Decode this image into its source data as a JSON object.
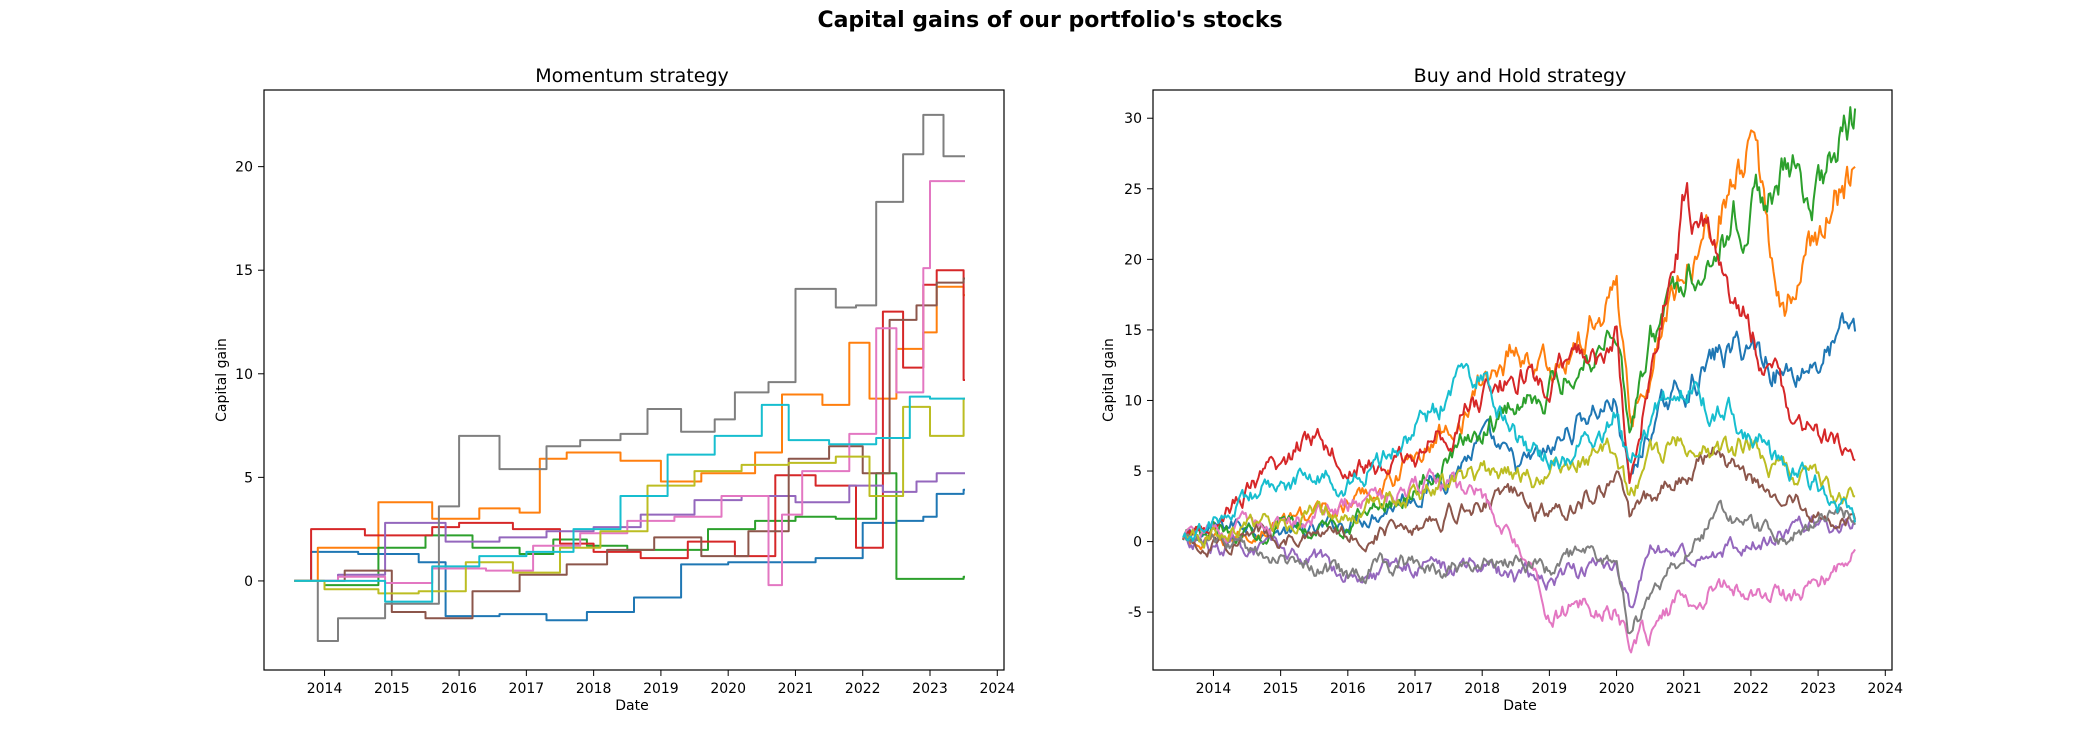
{
  "figure": {
    "suptitle": "Capital gains of our portfolio's stocks"
  },
  "colors": [
    "#1f77b4",
    "#ff7f0e",
    "#2ca02c",
    "#d62728",
    "#9467bd",
    "#8c564b",
    "#e377c2",
    "#7f7f7f",
    "#bcbd22",
    "#17becf"
  ],
  "chart_data": [
    {
      "type": "line",
      "title": "Momentum strategy",
      "xlabel": "Date",
      "ylabel": "Capital gain",
      "xlim": [
        2013.1,
        2024.1
      ],
      "ylim": [
        -4.3,
        23.7
      ],
      "xticks": [
        2014,
        2015,
        2016,
        2017,
        2018,
        2019,
        2020,
        2021,
        2022,
        2023,
        2024
      ],
      "yticks": [
        0,
        5,
        10,
        15,
        20
      ],
      "grid": false,
      "style": "step",
      "series": [
        {
          "x": [
            2013.55,
            2013.8,
            2014.5,
            2015.4,
            2015.8,
            2016.6,
            2017.3,
            2017.9,
            2018.6,
            2019.3,
            2020.0,
            2020.6,
            2021.3,
            2022.0,
            2022.5,
            2022.9,
            2023.1,
            2023.5
          ],
          "y": [
            0.0,
            1.4,
            1.3,
            0.9,
            -1.7,
            -1.6,
            -1.9,
            -1.5,
            -0.8,
            0.8,
            0.9,
            0.9,
            1.1,
            2.8,
            2.9,
            3.1,
            4.2,
            4.4
          ]
        },
        {
          "x": [
            2013.55,
            2013.9,
            2014.8,
            2015.6,
            2016.3,
            2016.9,
            2017.2,
            2017.6,
            2018.4,
            2019.0,
            2019.6,
            2020.4,
            2020.8,
            2021.4,
            2021.8,
            2022.1,
            2022.5,
            2022.9,
            2023.1,
            2023.5
          ],
          "y": [
            0.0,
            1.6,
            3.8,
            3.0,
            3.5,
            3.3,
            5.9,
            6.2,
            5.8,
            4.8,
            5.2,
            6.2,
            9.0,
            8.5,
            11.5,
            8.8,
            11.2,
            12.0,
            14.2,
            13.8
          ]
        },
        {
          "x": [
            2013.55,
            2014.0,
            2014.8,
            2015.5,
            2016.2,
            2016.9,
            2017.4,
            2017.9,
            2018.5,
            2019.1,
            2019.7,
            2020.4,
            2021.0,
            2021.6,
            2022.2,
            2022.5,
            2022.9,
            2023.2,
            2023.5
          ],
          "y": [
            0.0,
            -0.2,
            1.6,
            2.2,
            1.6,
            1.3,
            2.0,
            1.7,
            1.5,
            1.5,
            2.5,
            2.9,
            3.1,
            3.0,
            5.2,
            0.1,
            0.1,
            0.1,
            0.2
          ]
        },
        {
          "x": [
            2013.55,
            2013.8,
            2014.6,
            2015.6,
            2016.0,
            2016.8,
            2017.5,
            2018.0,
            2018.7,
            2019.4,
            2020.1,
            2020.7,
            2021.3,
            2021.9,
            2022.3,
            2022.6,
            2022.9,
            2023.1,
            2023.5
          ],
          "y": [
            0.0,
            2.5,
            2.2,
            2.6,
            2.8,
            2.5,
            1.8,
            1.4,
            1.1,
            1.9,
            1.2,
            5.1,
            4.6,
            1.6,
            13.0,
            10.3,
            14.3,
            15.0,
            9.7
          ]
        },
        {
          "x": [
            2013.55,
            2014.2,
            2014.9,
            2015.8,
            2016.6,
            2017.3,
            2018.0,
            2018.7,
            2019.5,
            2020.2,
            2021.0,
            2021.8,
            2022.3,
            2022.8,
            2023.1,
            2023.5
          ],
          "y": [
            0.0,
            0.3,
            2.8,
            1.9,
            2.1,
            2.4,
            2.6,
            3.2,
            3.9,
            4.1,
            3.8,
            4.6,
            4.3,
            4.8,
            5.2,
            5.2
          ]
        },
        {
          "x": [
            2013.55,
            2014.3,
            2015.0,
            2015.5,
            2016.2,
            2016.9,
            2017.6,
            2018.2,
            2018.9,
            2019.6,
            2020.3,
            2020.9,
            2021.5,
            2022.0,
            2022.4,
            2022.8,
            2023.1,
            2023.5
          ],
          "y": [
            0.0,
            0.5,
            -1.5,
            -1.8,
            -0.5,
            0.3,
            0.8,
            1.5,
            2.1,
            1.2,
            2.4,
            5.9,
            6.5,
            5.2,
            12.6,
            13.3,
            14.4,
            14.6
          ]
        },
        {
          "x": [
            2013.55,
            2014.2,
            2014.9,
            2015.6,
            2016.4,
            2017.1,
            2017.8,
            2018.5,
            2019.2,
            2019.9,
            2020.6,
            2020.8,
            2021.1,
            2021.8,
            2022.2,
            2022.5,
            2022.9,
            2023.0,
            2023.5
          ],
          "y": [
            0.0,
            0.2,
            -0.1,
            0.6,
            0.5,
            1.7,
            2.3,
            2.9,
            3.1,
            4.1,
            -0.2,
            3.2,
            5.3,
            7.1,
            12.2,
            9.1,
            15.1,
            19.3,
            19.3
          ]
        },
        {
          "x": [
            2013.55,
            2013.9,
            2014.2,
            2014.9,
            2015.7,
            2016.0,
            2016.6,
            2017.3,
            2017.8,
            2018.4,
            2018.8,
            2019.3,
            2019.8,
            2020.1,
            2020.6,
            2021.0,
            2021.6,
            2021.9,
            2022.2,
            2022.6,
            2022.9,
            2023.2,
            2023.5
          ],
          "y": [
            0.0,
            -2.9,
            -1.8,
            -1.1,
            3.6,
            7.0,
            5.4,
            6.5,
            6.8,
            7.1,
            8.3,
            7.2,
            7.8,
            9.1,
            9.6,
            14.1,
            13.2,
            13.3,
            18.3,
            20.6,
            22.5,
            20.5,
            20.5
          ]
        },
        {
          "x": [
            2013.55,
            2014.0,
            2014.8,
            2015.4,
            2016.1,
            2016.8,
            2017.5,
            2018.1,
            2018.8,
            2019.5,
            2020.2,
            2020.9,
            2021.6,
            2022.1,
            2022.6,
            2023.0,
            2023.5
          ],
          "y": [
            0.0,
            -0.4,
            -0.6,
            -0.5,
            0.9,
            0.4,
            1.6,
            2.4,
            4.6,
            5.3,
            5.6,
            5.7,
            6.0,
            4.1,
            8.4,
            7.0,
            8.8
          ]
        },
        {
          "x": [
            2013.55,
            2014.1,
            2014.9,
            2015.6,
            2016.3,
            2017.0,
            2017.7,
            2018.4,
            2019.1,
            2019.8,
            2020.5,
            2020.9,
            2021.5,
            2022.2,
            2022.7,
            2023.0,
            2023.5
          ],
          "y": [
            0.0,
            0.0,
            -1.0,
            0.7,
            1.2,
            1.4,
            2.5,
            4.1,
            6.1,
            7.0,
            8.5,
            6.8,
            6.6,
            6.9,
            8.9,
            8.8,
            8.8
          ]
        }
      ]
    },
    {
      "type": "line",
      "title": "Buy and Hold strategy",
      "xlabel": "Date",
      "ylabel": "Capital gain",
      "xlim": [
        2013.1,
        2024.1
      ],
      "ylim": [
        -9.1,
        32.0
      ],
      "xticks": [
        2014,
        2015,
        2016,
        2017,
        2018,
        2019,
        2020,
        2021,
        2022,
        2023,
        2024
      ],
      "yticks": [
        -5,
        0,
        5,
        10,
        15,
        20,
        25,
        30
      ],
      "grid": false,
      "style": "noisy",
      "series": [
        {
          "x": [
            2013.55,
            2014.0,
            2014.5,
            2015.0,
            2015.5,
            2016.0,
            2016.5,
            2017.0,
            2017.5,
            2018.0,
            2018.5,
            2019.0,
            2019.5,
            2020.0,
            2020.2,
            2020.5,
            2021.0,
            2021.5,
            2022.0,
            2022.5,
            2023.0,
            2023.55
          ],
          "y": [
            0,
            0.8,
            1.5,
            0.8,
            0.5,
            1.5,
            2.5,
            3.5,
            5,
            7,
            5,
            6,
            9,
            10,
            4,
            8,
            11,
            13,
            14,
            12,
            13,
            15
          ]
        },
        {
          "x": [
            2013.55,
            2014.0,
            2014.5,
            2015.0,
            2015.5,
            2016.0,
            2016.5,
            2017.0,
            2017.5,
            2018.0,
            2018.5,
            2019.0,
            2019.5,
            2020.0,
            2020.2,
            2020.5,
            2021.0,
            2021.5,
            2022.0,
            2022.5,
            2023.0,
            2023.55
          ],
          "y": [
            0,
            -0.5,
            0.5,
            1.5,
            2,
            2.5,
            4,
            6,
            8,
            11,
            14,
            12,
            14,
            19,
            8,
            13,
            20,
            24,
            27,
            16,
            22,
            26.5
          ]
        },
        {
          "x": [
            2013.55,
            2014.0,
            2014.5,
            2015.0,
            2015.5,
            2016.0,
            2016.5,
            2017.0,
            2017.5,
            2018.0,
            2018.5,
            2019.0,
            2019.5,
            2020.0,
            2020.2,
            2020.5,
            2021.0,
            2021.5,
            2022.0,
            2022.5,
            2023.0,
            2023.55
          ],
          "y": [
            0,
            0.5,
            1,
            1.2,
            0.8,
            1.5,
            2.5,
            4,
            6,
            8,
            10,
            11,
            13,
            16,
            8,
            14,
            19,
            22,
            24,
            26,
            25,
            30
          ]
        },
        {
          "x": [
            2013.55,
            2014.0,
            2014.5,
            2015.0,
            2015.5,
            2016.0,
            2016.5,
            2017.0,
            2017.5,
            2018.0,
            2018.5,
            2019.0,
            2019.5,
            2020.0,
            2020.2,
            2020.5,
            2021.0,
            2021.5,
            2022.0,
            2022.5,
            2023.0,
            2023.55
          ],
          "y": [
            0,
            1.5,
            3.5,
            5,
            8,
            6,
            5,
            6,
            8,
            10,
            12,
            11,
            13,
            14,
            4,
            12,
            24,
            20,
            15,
            10,
            7,
            6.5
          ]
        },
        {
          "x": [
            2013.55,
            2014.0,
            2014.5,
            2015.0,
            2015.5,
            2016.0,
            2016.5,
            2017.0,
            2017.5,
            2018.0,
            2018.5,
            2019.0,
            2019.5,
            2020.0,
            2020.2,
            2020.5,
            2021.0,
            2021.5,
            2022.0,
            2022.5,
            2023.0,
            2023.55
          ],
          "y": [
            0,
            -0.3,
            -0.5,
            -1,
            -1.5,
            -1.8,
            -2,
            -1.5,
            -1.8,
            -2,
            -2.5,
            -2.5,
            -2,
            -1.5,
            -5,
            -1,
            -1,
            -0.5,
            0,
            0.5,
            1,
            1
          ]
        },
        {
          "x": [
            2013.55,
            2014.0,
            2014.5,
            2015.0,
            2015.5,
            2016.0,
            2016.5,
            2017.0,
            2017.5,
            2018.0,
            2018.5,
            2019.0,
            2019.5,
            2020.0,
            2020.2,
            2020.5,
            2021.0,
            2021.5,
            2022.0,
            2022.5,
            2023.0,
            2023.55
          ],
          "y": [
            0,
            0,
            0.5,
            0.5,
            0,
            0.5,
            1,
            1.5,
            2,
            3,
            3,
            2,
            3,
            5,
            1,
            3,
            5,
            6,
            5,
            3,
            2,
            1
          ]
        },
        {
          "x": [
            2013.55,
            2014.0,
            2014.5,
            2015.0,
            2015.5,
            2016.0,
            2016.5,
            2017.0,
            2017.5,
            2018.0,
            2018.5,
            2019.0,
            2019.5,
            2020.0,
            2020.2,
            2020.5,
            2021.0,
            2021.5,
            2022.0,
            2022.5,
            2023.0,
            2023.55
          ],
          "y": [
            0,
            0.5,
            1,
            1.5,
            2,
            2.5,
            3,
            3.5,
            4,
            3,
            0,
            -5,
            -4.5,
            -5,
            -6.5,
            -6.5,
            -4,
            -3,
            -3,
            -4,
            -3,
            -1
          ]
        },
        {
          "x": [
            2013.55,
            2014.0,
            2014.5,
            2015.0,
            2015.5,
            2016.0,
            2016.5,
            2017.0,
            2017.5,
            2018.0,
            2018.5,
            2019.0,
            2019.5,
            2020.0,
            2020.2,
            2020.5,
            2021.0,
            2021.5,
            2022.0,
            2022.5,
            2023.0,
            2023.55
          ],
          "y": [
            0,
            0,
            -0.5,
            -1,
            -1.5,
            -2.5,
            -2,
            -1.5,
            -2,
            -1.5,
            -1,
            -2,
            -1,
            -1.5,
            -7,
            -3,
            -1,
            2,
            1,
            0,
            2,
            2
          ]
        },
        {
          "x": [
            2013.55,
            2014.0,
            2014.5,
            2015.0,
            2015.5,
            2016.0,
            2016.5,
            2017.0,
            2017.5,
            2018.0,
            2018.5,
            2019.0,
            2019.5,
            2020.0,
            2020.2,
            2020.5,
            2021.0,
            2021.5,
            2022.0,
            2022.5,
            2023.0,
            2023.55
          ],
          "y": [
            0,
            0.5,
            1,
            1.5,
            2,
            2.5,
            3,
            3.5,
            4,
            4.5,
            5,
            4,
            6,
            7,
            3,
            6,
            7,
            6,
            7,
            5,
            4,
            3
          ]
        },
        {
          "x": [
            2013.55,
            2014.0,
            2014.5,
            2015.0,
            2015.5,
            2016.0,
            2016.5,
            2017.0,
            2017.5,
            2018.0,
            2018.5,
            2019.0,
            2019.5,
            2020.0,
            2020.2,
            2020.5,
            2021.0,
            2021.5,
            2022.0,
            2022.5,
            2023.0,
            2023.55
          ],
          "y": [
            0,
            1,
            3,
            4,
            5,
            4,
            6,
            8,
            10,
            12,
            7,
            6,
            7,
            9,
            5,
            9,
            11,
            9,
            8,
            5,
            4,
            2
          ]
        }
      ]
    }
  ]
}
